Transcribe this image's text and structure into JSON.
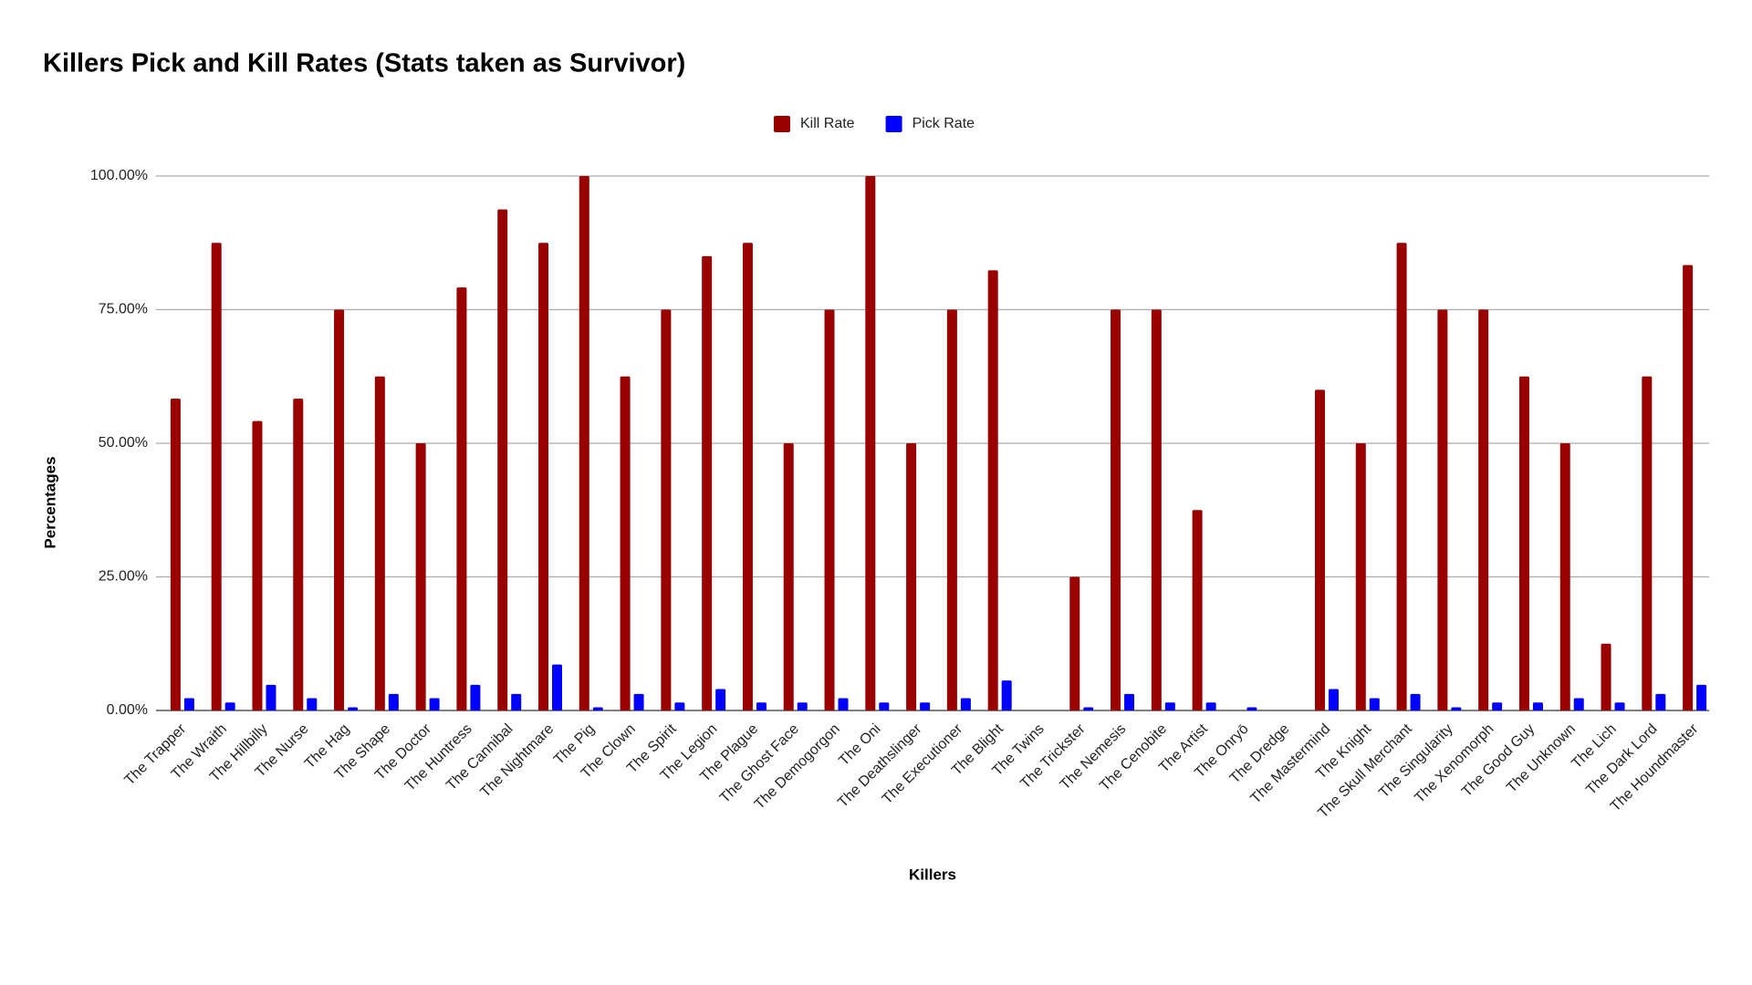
{
  "chart_data": {
    "type": "bar",
    "title": "Killers Pick and Kill Rates (Stats taken as Survivor)",
    "x_label": "Killers",
    "y_label": "Percentages",
    "categories": [
      "The Trapper",
      "The Wraith",
      "The Hillbilly",
      "The Nurse",
      "The Hag",
      "The Shape",
      "The Doctor",
      "The Huntress",
      "The Cannibal",
      "The Nightmare",
      "The Pig",
      "The Clown",
      "The Spirit",
      "The Legion",
      "The Plague",
      "The Ghost Face",
      "The Demogorgon",
      "The Oni",
      "The Deathslinger",
      "The Executioner",
      "The Blight",
      "The Twins",
      "The Trickster",
      "The Nemesis",
      "The Cenobite",
      "The Artist",
      "The Onryō",
      "The Dredge",
      "The Mastermind",
      "The Knight",
      "The Skull Merchant",
      "The Singularity",
      "The Xenomorph",
      "The Good Guy",
      "The Unknown",
      "The Lich",
      "The Dark Lord",
      "The Houndmaster"
    ],
    "series": [
      {
        "name": "Kill Rate",
        "color": "#990000",
        "values": [
          58.33,
          87.5,
          54.17,
          58.33,
          75,
          62.5,
          50,
          79.17,
          93.75,
          87.5,
          100,
          62.5,
          75,
          85,
          87.5,
          50,
          75,
          100,
          50,
          75,
          82.35,
          0,
          25,
          75,
          75,
          37.5,
          0,
          0,
          60,
          50,
          87.5,
          75,
          75,
          62.5,
          50,
          12.5,
          62.5,
          83.33
        ]
      },
      {
        "name": "Pick Rate",
        "color": "#0000ff",
        "values": [
          2.3,
          1.5,
          4.8,
          2.3,
          0.6,
          3.1,
          2.3,
          4.8,
          3.1,
          8.6,
          0.6,
          3.1,
          1.5,
          4.0,
          1.5,
          1.5,
          2.3,
          1.5,
          1.5,
          2.3,
          5.6,
          0,
          0.6,
          3.1,
          1.5,
          1.5,
          0.6,
          0,
          4.0,
          2.3,
          3.1,
          0.6,
          1.5,
          1.5,
          2.3,
          1.5,
          3.1,
          4.8
        ]
      }
    ],
    "ylim": [
      0,
      100
    ],
    "yticks": [
      {
        "value": 0,
        "label": "0.00%"
      },
      {
        "value": 25,
        "label": "25.00%"
      },
      {
        "value": 50,
        "label": "50.00%"
      },
      {
        "value": 75,
        "label": "75.00%"
      },
      {
        "value": 100,
        "label": "100.00%"
      }
    ],
    "grid": true,
    "legend": "top"
  }
}
